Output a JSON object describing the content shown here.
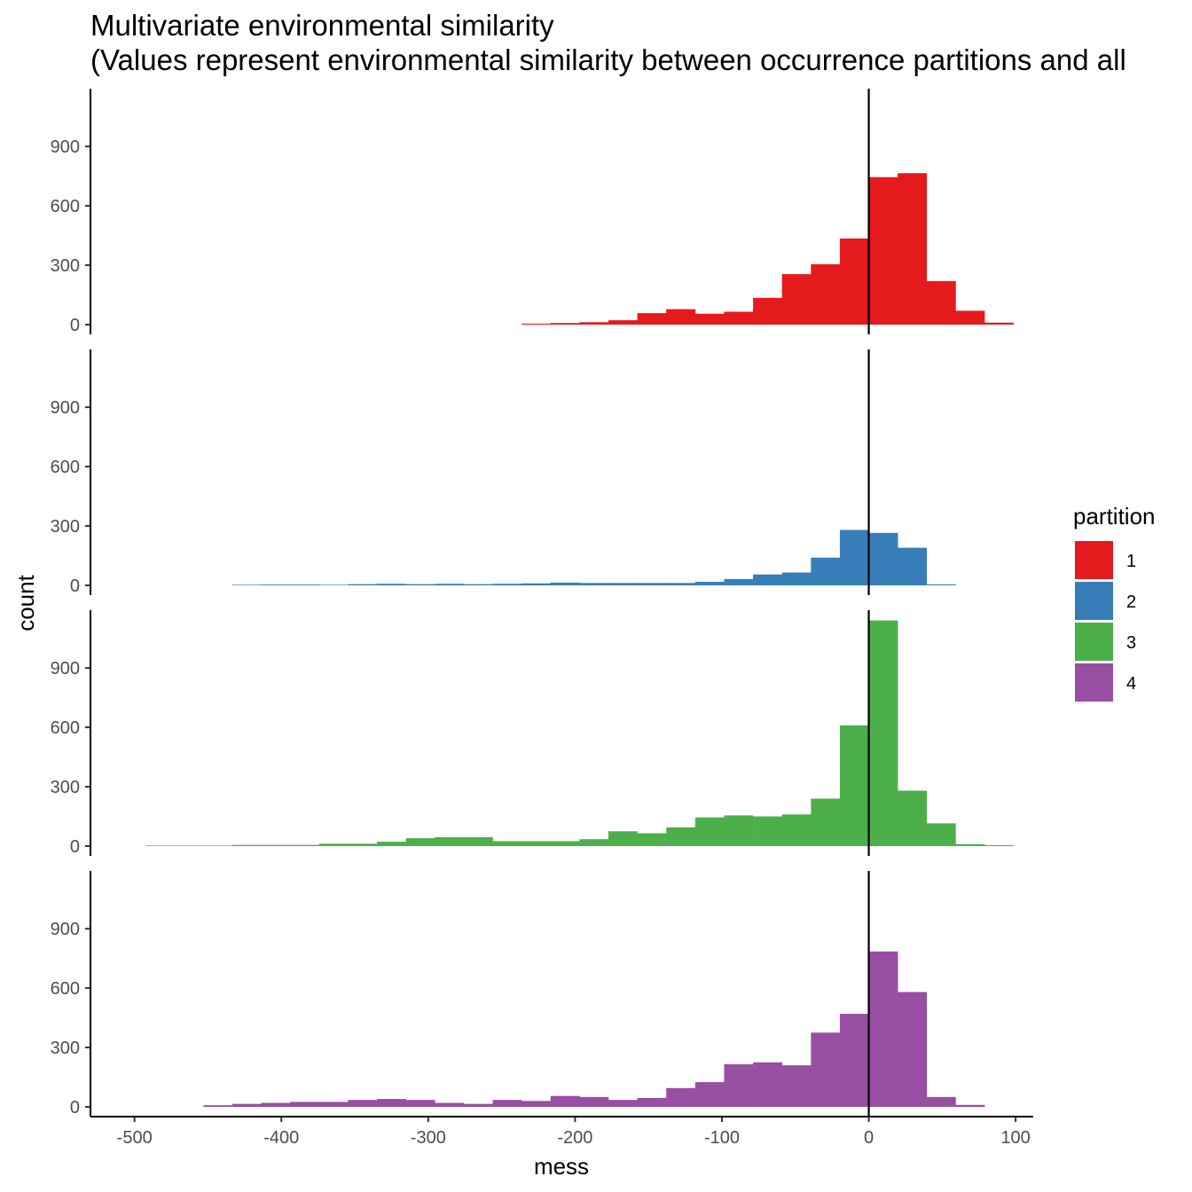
{
  "chart_data": {
    "type": "bar",
    "title": "Multivariate environmental similarity",
    "subtitle": "(Values represent environmental similarity between occurrence partitions and all",
    "xlabel": "mess",
    "ylabel": "count",
    "xlim": [
      -530,
      112
    ],
    "ylim": [
      0,
      1180
    ],
    "x_ticks": [
      -500,
      -400,
      -300,
      -200,
      -100,
      0,
      100
    ],
    "y_ticks": [
      0,
      300,
      600,
      900
    ],
    "bin_width": 19.7,
    "vline_x": 0,
    "legend": {
      "title": "partition",
      "position": "right",
      "entries": [
        {
          "label": "1",
          "color": "#E41A1C"
        },
        {
          "label": "2",
          "color": "#377EB8"
        },
        {
          "label": "3",
          "color": "#4DAF4A"
        },
        {
          "label": "4",
          "color": "#984EA3"
        }
      ]
    },
    "series": [
      {
        "name": "1",
        "color": "#E41A1C",
        "x": [
          -236.4,
          -216.7,
          -197,
          -177.3,
          -157.6,
          -137.9,
          -118.2,
          -98.5,
          -78.8,
          -59.1,
          -39.4,
          -19.7,
          0,
          19.7,
          39.4,
          59.1,
          78.8
        ],
        "values": [
          5,
          8,
          12,
          22,
          58,
          78,
          55,
          65,
          135,
          255,
          305,
          435,
          745,
          765,
          220,
          70,
          10
        ]
      },
      {
        "name": "2",
        "color": "#377EB8",
        "x": [
          -433.4,
          -413.7,
          -394,
          -374.3,
          -354.6,
          -334.9,
          -315.2,
          -295.5,
          -275.8,
          -256.1,
          -236.4,
          -216.7,
          -197,
          -177.3,
          -157.6,
          -137.9,
          -118.2,
          -98.5,
          -78.8,
          -59.1,
          -39.4,
          -19.7,
          0,
          19.7,
          39.4
        ],
        "values": [
          3,
          4,
          4,
          3,
          6,
          8,
          6,
          8,
          6,
          8,
          10,
          14,
          12,
          12,
          12,
          12,
          18,
          32,
          55,
          65,
          140,
          280,
          265,
          190,
          5
        ]
      },
      {
        "name": "3",
        "color": "#4DAF4A",
        "x": [
          -492.5,
          -472.8,
          -453.1,
          -433.4,
          -413.7,
          -394,
          -374.3,
          -354.6,
          -334.9,
          -315.2,
          -295.5,
          -275.8,
          -256.1,
          -236.4,
          -216.7,
          -197,
          -177.3,
          -157.6,
          -137.9,
          -118.2,
          -98.5,
          -78.8,
          -59.1,
          -39.4,
          -19.7,
          0,
          19.7,
          39.4,
          59.1,
          78.8
        ],
        "values": [
          3,
          3,
          3,
          6,
          6,
          6,
          12,
          12,
          22,
          40,
          45,
          45,
          25,
          25,
          25,
          35,
          75,
          65,
          95,
          145,
          155,
          150,
          160,
          240,
          610,
          1140,
          280,
          115,
          10,
          5
        ]
      },
      {
        "name": "4",
        "color": "#984EA3",
        "x": [
          -453.1,
          -433.4,
          -413.7,
          -394,
          -374.3,
          -354.6,
          -334.9,
          -315.2,
          -295.5,
          -275.8,
          -256.1,
          -236.4,
          -216.7,
          -197,
          -177.3,
          -157.6,
          -137.9,
          -118.2,
          -98.5,
          -78.8,
          -59.1,
          -39.4,
          -19.7,
          0,
          19.7,
          39.4,
          59.1
        ],
        "values": [
          8,
          15,
          20,
          25,
          25,
          35,
          40,
          35,
          20,
          15,
          35,
          30,
          55,
          50,
          35,
          45,
          95,
          125,
          215,
          225,
          210,
          375,
          470,
          785,
          580,
          50,
          10
        ]
      }
    ]
  }
}
